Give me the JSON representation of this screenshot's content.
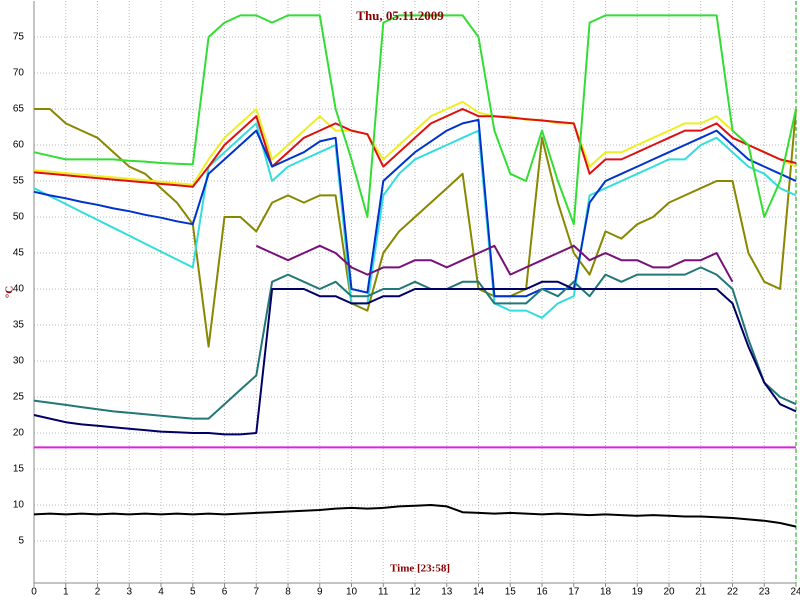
{
  "chart_data": {
    "type": "line",
    "title": "Thu, 05.11.2009",
    "x_label": "Time [23:58]",
    "y_label": "°C",
    "xlim": [
      0,
      24
    ],
    "xticks": [
      0,
      1,
      2,
      3,
      4,
      5,
      6,
      7,
      8,
      9,
      10,
      11,
      12,
      13,
      14,
      15,
      16,
      17,
      18,
      19,
      20,
      21,
      22,
      23,
      24
    ],
    "ylim": [
      0,
      80
    ],
    "yticks": [
      5,
      10,
      15,
      20,
      25,
      30,
      35,
      40,
      45,
      50,
      55,
      60,
      65,
      70,
      75
    ],
    "grid": true,
    "x": [
      0,
      0.5,
      1,
      1.5,
      2,
      2.5,
      3,
      3.5,
      4,
      4.5,
      5,
      5.5,
      6,
      6.5,
      7,
      7.5,
      8,
      8.5,
      9,
      9.5,
      10,
      10.5,
      11,
      11.5,
      12,
      12.5,
      13,
      13.5,
      14,
      14.5,
      15,
      15.5,
      16,
      16.5,
      17,
      17.5,
      18,
      18.5,
      19,
      19.5,
      20,
      20.5,
      21,
      21.5,
      22,
      22.5,
      23,
      23.5,
      24
    ],
    "series": [
      {
        "color": "#888800",
        "values": [
          65,
          65,
          63,
          62,
          61,
          59,
          57,
          56,
          54,
          52,
          49,
          32,
          50,
          50,
          48,
          52,
          53,
          52,
          53,
          53,
          38,
          37,
          45,
          48,
          50,
          52,
          54,
          56,
          40,
          39,
          39,
          40,
          61,
          52,
          45,
          42,
          48,
          47,
          49,
          50,
          52,
          53,
          54,
          55,
          55,
          45,
          41,
          40,
          65
        ]
      },
      {
        "color": "#33dddd",
        "values": [
          54,
          52.9,
          51.8,
          50.7,
          49.6,
          48.5,
          47.4,
          46.3,
          45.2,
          44.1,
          43,
          57,
          59,
          61,
          63,
          55,
          57,
          58,
          59,
          60,
          38,
          38,
          53,
          56,
          58,
          59,
          60,
          61,
          62,
          38,
          37,
          37,
          36,
          38,
          39,
          53,
          54,
          55,
          56,
          57,
          58,
          58,
          60,
          61,
          59,
          57,
          56,
          54,
          53
        ]
      },
      {
        "color": "#eeee22",
        "values": [
          56.5,
          56.3,
          56.1,
          55.9,
          55.7,
          55.5,
          55.3,
          55.1,
          54.9,
          54.7,
          54.5,
          58,
          61,
          63,
          65,
          58,
          60,
          62,
          64,
          62,
          62,
          61.5,
          58,
          60,
          62,
          64,
          65,
          66,
          64.5,
          64,
          64,
          63.5,
          63.5,
          63,
          63,
          57,
          59,
          59,
          60,
          61,
          62,
          63,
          63,
          64,
          62,
          60,
          59,
          58,
          57
        ]
      },
      {
        "color": "#dd1111",
        "values": [
          56.2,
          56,
          55.8,
          55.6,
          55.4,
          55.2,
          55,
          54.8,
          54.6,
          54.4,
          54.2,
          57,
          60,
          62,
          64,
          57,
          59,
          61,
          62,
          63,
          62,
          61.5,
          57,
          59,
          61,
          63,
          64,
          65,
          64,
          64,
          63.8,
          63.6,
          63.4,
          63.2,
          63,
          56,
          58,
          58,
          59,
          60,
          61,
          62,
          62,
          63,
          61,
          60,
          59,
          58,
          57.5
        ]
      },
      {
        "color": "#0033cc",
        "values": [
          53.5,
          53,
          52.6,
          52.1,
          51.7,
          51.2,
          50.8,
          50.3,
          49.9,
          49.4,
          49,
          56,
          58,
          60,
          62,
          57,
          58,
          59,
          60.5,
          61,
          40,
          39.5,
          55,
          57,
          59,
          60.5,
          62,
          63,
          63.5,
          39,
          39,
          39,
          40,
          40,
          40,
          52,
          55,
          56,
          57,
          58,
          59,
          60,
          61,
          62,
          60,
          58,
          57,
          56,
          55
        ]
      },
      {
        "color": "#227777",
        "values": [
          24.5,
          24.2,
          23.9,
          23.6,
          23.3,
          23,
          22.8,
          22.6,
          22.4,
          22.2,
          22,
          22,
          24,
          26,
          28,
          41,
          42,
          41,
          40,
          41,
          39,
          39,
          40,
          40,
          41,
          40,
          40,
          41,
          41,
          38,
          38,
          38,
          40,
          39,
          41,
          39,
          42,
          41,
          42,
          42,
          42,
          42,
          43,
          42,
          40,
          33,
          27,
          25,
          24
        ]
      },
      {
        "color": "#771177",
        "values": [
          null,
          null,
          null,
          null,
          null,
          null,
          null,
          null,
          null,
          null,
          null,
          null,
          null,
          null,
          46,
          45,
          44,
          45,
          46,
          45,
          43,
          42,
          43,
          43,
          44,
          44,
          43,
          44,
          45,
          46,
          42,
          43,
          44,
          45,
          46,
          44,
          45,
          44,
          44,
          43,
          43,
          44,
          44,
          45,
          41,
          null,
          null,
          null,
          null
        ]
      },
      {
        "color": "#000066",
        "values": [
          22.5,
          22,
          21.5,
          21.2,
          21,
          20.8,
          20.6,
          20.4,
          20.2,
          20.1,
          20,
          20,
          19.8,
          19.8,
          20,
          40,
          40,
          40,
          39,
          39,
          38,
          38,
          39,
          39,
          40,
          40,
          40,
          40,
          40,
          40,
          40,
          40,
          41,
          41,
          40,
          40,
          40,
          40,
          40,
          40,
          40,
          40,
          40,
          40,
          38,
          32,
          27,
          24,
          23
        ]
      },
      {
        "color": "#33dd33",
        "values": [
          59,
          58.5,
          58,
          58,
          58,
          58,
          57.8,
          57.7,
          57.5,
          57.4,
          57.3,
          75,
          77,
          78,
          78,
          77,
          78,
          78,
          78,
          65,
          58,
          50,
          77,
          78,
          78,
          78,
          78,
          78,
          75,
          62,
          56,
          55,
          62,
          55,
          49,
          77,
          78,
          78,
          78,
          78,
          78,
          78,
          78,
          78,
          62,
          60,
          50,
          55,
          65
        ]
      },
      {
        "color": "#dd22dd",
        "values": [
          18,
          18,
          18,
          18,
          18,
          18,
          18,
          18,
          18,
          18,
          18,
          18,
          18,
          18,
          18,
          18,
          18,
          18,
          18,
          18,
          18,
          18,
          18,
          18,
          18,
          18,
          18,
          18,
          18,
          18,
          18,
          18,
          18,
          18,
          18,
          18,
          18,
          18,
          18,
          18,
          18,
          18,
          18,
          18,
          18,
          18,
          18,
          18,
          18
        ]
      },
      {
        "color": "#000000",
        "values": [
          8.7,
          8.8,
          8.7,
          8.8,
          8.7,
          8.8,
          8.7,
          8.8,
          8.7,
          8.8,
          8.7,
          8.8,
          8.7,
          8.8,
          8.9,
          9,
          9.1,
          9.2,
          9.3,
          9.5,
          9.6,
          9.5,
          9.6,
          9.8,
          9.9,
          10,
          9.8,
          9,
          8.9,
          8.8,
          8.9,
          8.8,
          8.7,
          8.8,
          8.7,
          8.6,
          8.7,
          8.6,
          8.5,
          8.6,
          8.5,
          8.4,
          8.4,
          8.3,
          8.2,
          8,
          7.8,
          7.5,
          7
        ]
      }
    ]
  }
}
